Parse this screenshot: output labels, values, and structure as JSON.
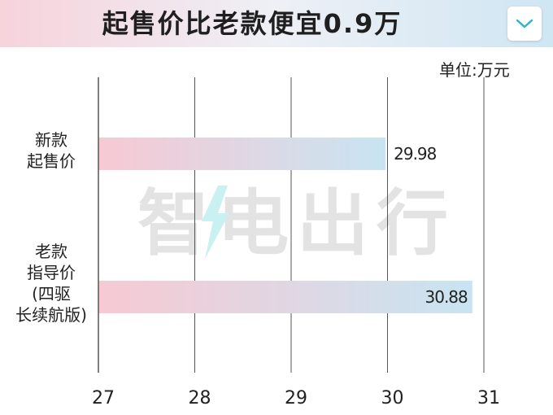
{
  "header": {
    "title": "起售价比老款便宜0.9万"
  },
  "unit_label": "单位:万元",
  "colors": {
    "bar_start": "#f7c9d3",
    "bar_end": "#c8e4f2",
    "grid": "#555555",
    "text": "#222222"
  },
  "chart_data": {
    "type": "bar",
    "orientation": "horizontal",
    "title": "起售价比老款便宜0.9万",
    "unit": "单位:万元",
    "categories": [
      "新款\n起售价",
      "老款\n指导价\n(四驱\n长续航版)"
    ],
    "values": [
      29.98,
      30.88
    ],
    "value_labels": [
      "29.98",
      "30.88"
    ],
    "xlim": [
      27,
      31
    ],
    "xticks": [
      "27",
      "28",
      "29",
      "30",
      "31"
    ],
    "grid": true
  },
  "watermark": {
    "text": "智电出行"
  }
}
